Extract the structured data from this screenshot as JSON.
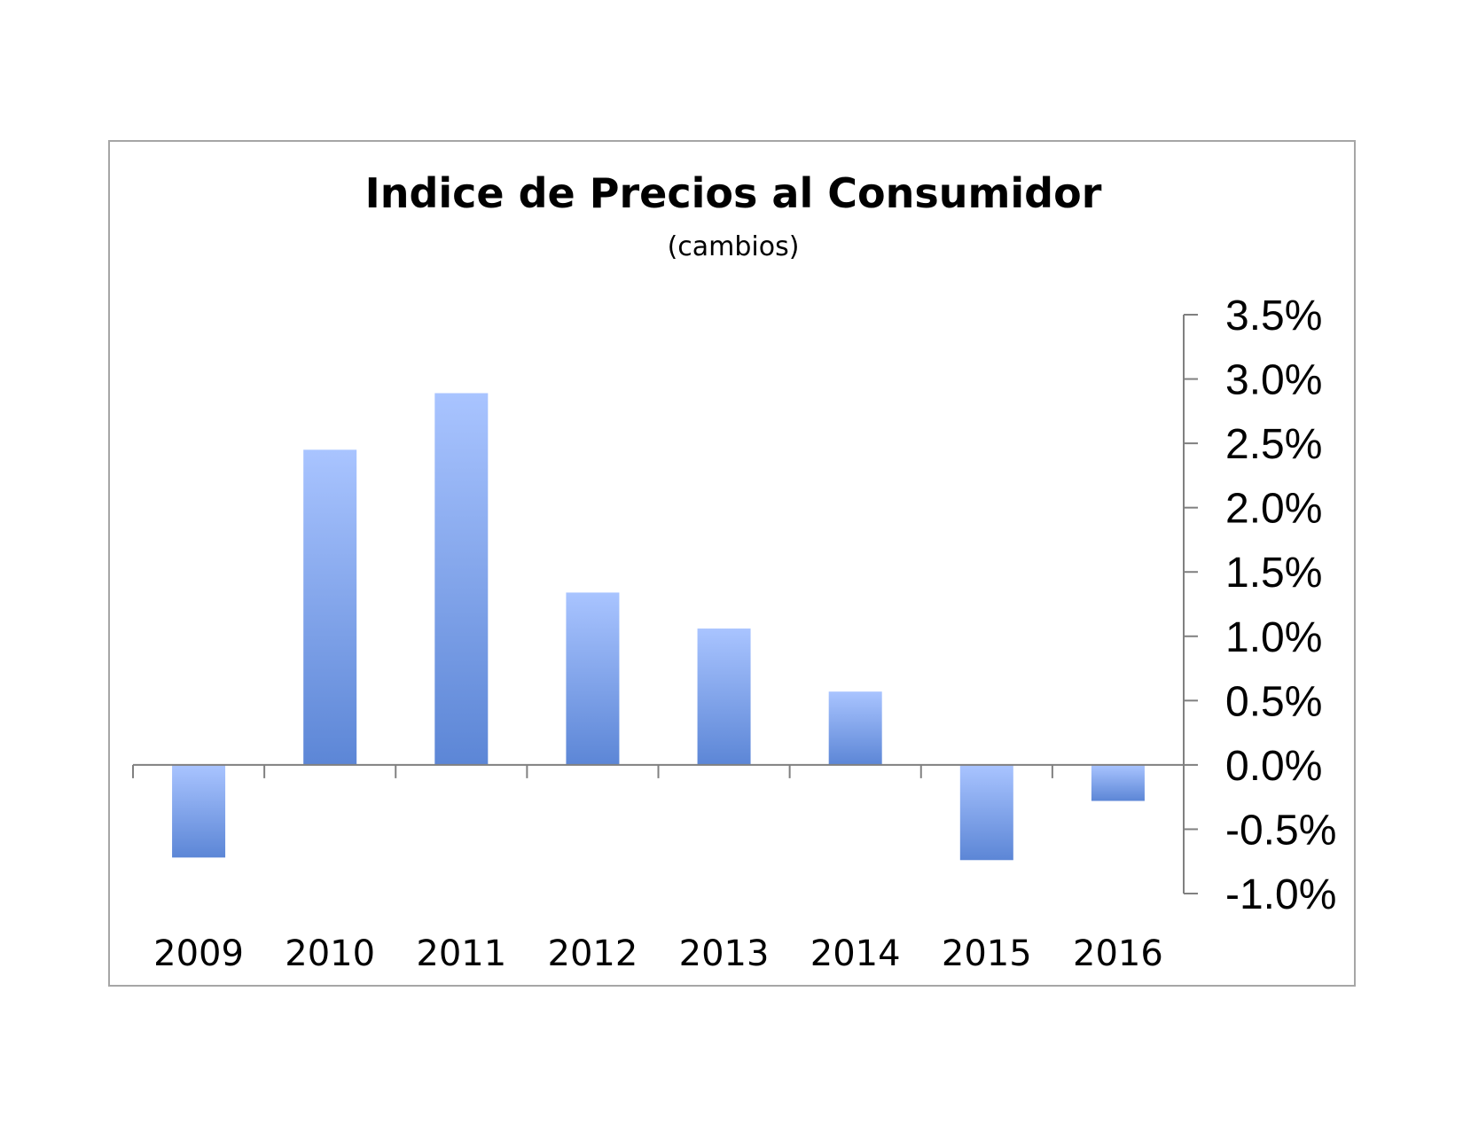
{
  "chart_data": {
    "type": "bar",
    "title": "Indice de Precios al Consumidor",
    "subtitle": "(cambios)",
    "categories": [
      "2009",
      "2010",
      "2011",
      "2012",
      "2013",
      "2014",
      "2015",
      "2016"
    ],
    "values": [
      -0.72,
      2.45,
      2.89,
      1.34,
      1.06,
      0.57,
      -0.74,
      -0.28
    ],
    "ylim": [
      -1.0,
      3.5
    ],
    "yticks": [
      3.5,
      3.0,
      2.5,
      2.0,
      1.5,
      1.0,
      0.5,
      0.0,
      -0.5,
      -1.0
    ],
    "ytick_labels": [
      "3.5%",
      "3.0%",
      "2.5%",
      "2.0%",
      "1.5%",
      "1.0%",
      "0.5%",
      "0.0%",
      "-0.5%",
      "-1.0%"
    ],
    "yaxis_position": "right",
    "grid": false,
    "legend": false,
    "colors": {
      "bar_top": "#a9c4ff",
      "bar_bottom": "#5c86d6",
      "axis": "#808080",
      "frame": "#a6a6a6"
    }
  }
}
